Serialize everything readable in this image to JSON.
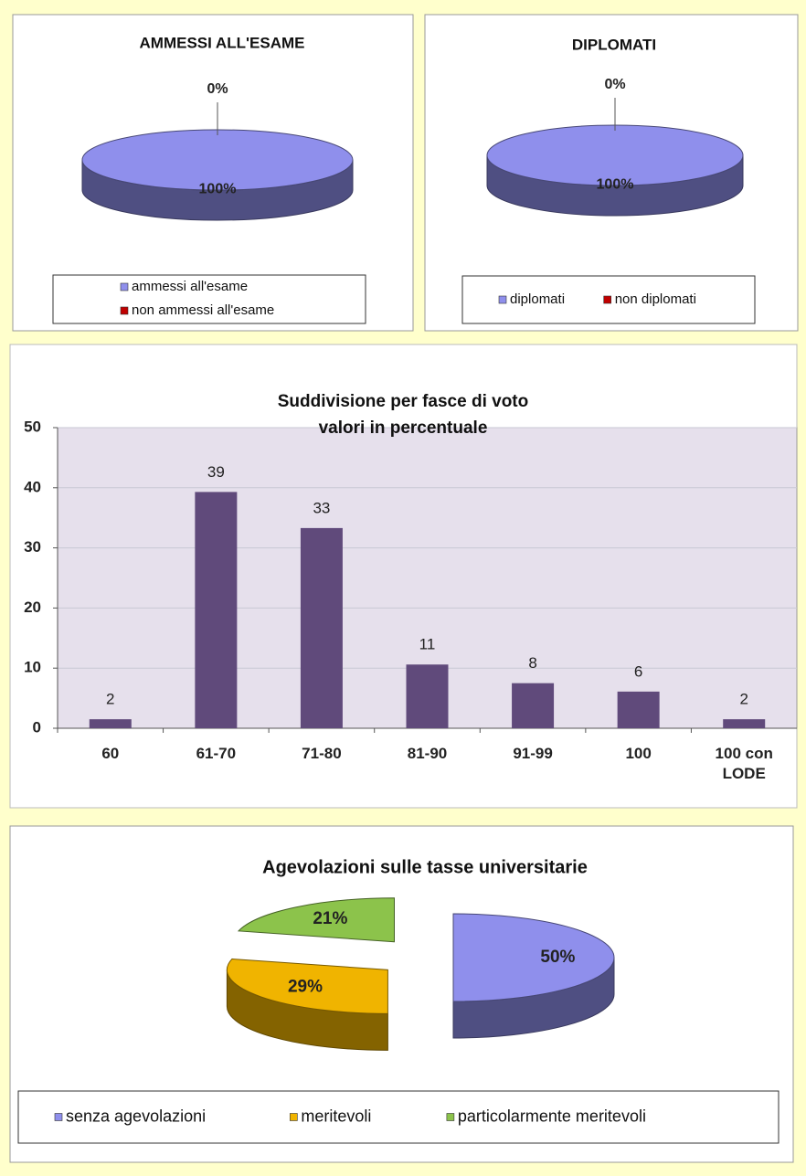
{
  "chart_data": [
    {
      "type": "pie",
      "title": "AMMESSI ALL'ESAME",
      "categories": [
        "ammessi all'esame",
        "non ammessi all'esame"
      ],
      "values": [
        100,
        0
      ],
      "value_labels": [
        "100%",
        "0%"
      ],
      "colors": [
        "#8f8fec",
        "#c00000"
      ],
      "legend": "bottom"
    },
    {
      "type": "pie",
      "title": "DIPLOMATI",
      "categories": [
        "diplomati",
        "non diplomati"
      ],
      "values": [
        100,
        0
      ],
      "value_labels": [
        "100%",
        "0%"
      ],
      "colors": [
        "#8f8fec",
        "#c00000"
      ],
      "legend": "bottom"
    },
    {
      "type": "bar",
      "title": "Suddivisione per fasce di voto",
      "subtitle": "valori in percentuale",
      "categories": [
        "60",
        "61-70",
        "71-80",
        "81-90",
        "91-99",
        "100",
        "100 con LODE"
      ],
      "values": [
        1.5,
        39.3,
        33.3,
        10.6,
        7.5,
        6.1,
        1.5
      ],
      "value_labels": [
        "2",
        "39",
        "33",
        "11",
        "8",
        "6",
        "2"
      ],
      "color": "#604a7b",
      "ylim": [
        0,
        50
      ],
      "yticks": [
        0,
        10,
        20,
        30,
        40,
        50
      ],
      "grid": true
    },
    {
      "type": "pie",
      "title": "Agevolazioni sulle tasse universitarie",
      "categories": [
        "senza agevolazioni",
        "meritevoli",
        "particolarmente meritevoli"
      ],
      "values": [
        50,
        29,
        21
      ],
      "value_labels": [
        "50%",
        "29%",
        "21%"
      ],
      "colors": [
        "#8f8fec",
        "#f0b400",
        "#8cc34b"
      ],
      "legend": "bottom"
    }
  ]
}
